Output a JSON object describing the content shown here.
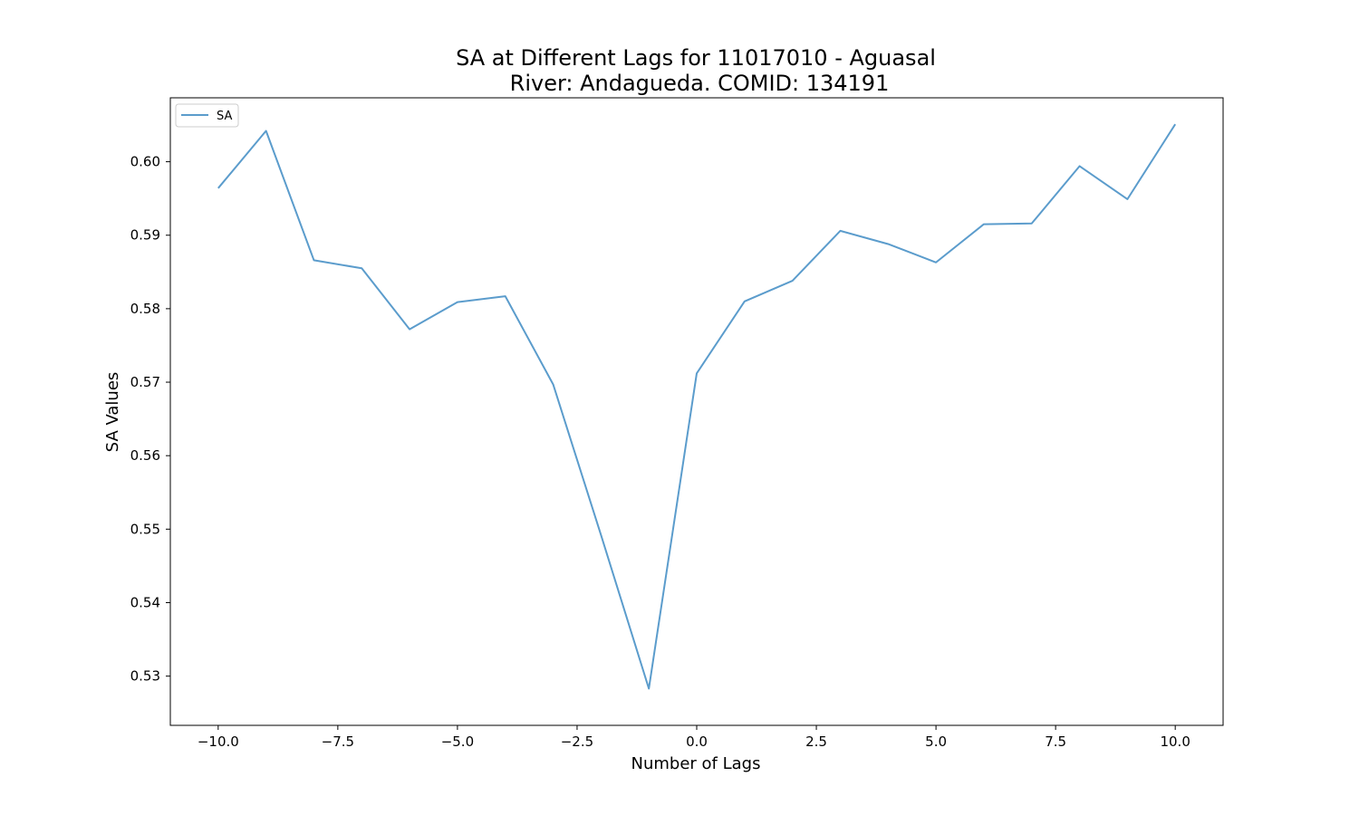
{
  "chart_data": {
    "type": "line",
    "title_line1": "SA at Different Lags for 11017010 - Aguasal",
    "title_line2": "River: Andagueda. COMID: 134191",
    "xlabel": "Number of Lags",
    "ylabel": "SA Values",
    "xlim": [
      -11,
      11
    ],
    "ylim": [
      0.5233,
      0.6087
    ],
    "xticks": [
      -10.0,
      -7.5,
      -5.0,
      -2.5,
      0.0,
      2.5,
      5.0,
      7.5,
      10.0
    ],
    "xtick_labels": [
      "−10.0",
      "−7.5",
      "−5.0",
      "−2.5",
      "0.0",
      "2.5",
      "5.0",
      "7.5",
      "10.0"
    ],
    "yticks": [
      0.53,
      0.54,
      0.55,
      0.56,
      0.57,
      0.58,
      0.59,
      0.6
    ],
    "ytick_labels": [
      "0.53",
      "0.54",
      "0.55",
      "0.56",
      "0.57",
      "0.58",
      "0.59",
      "0.60"
    ],
    "grid": false,
    "legend_position": "top-left",
    "series": [
      {
        "name": "SA",
        "color": "#5b9ccc",
        "x": [
          -10,
          -9,
          -8,
          -7,
          -6,
          -5,
          -4,
          -3,
          -2,
          -1,
          0,
          1,
          2,
          3,
          4,
          5,
          6,
          7,
          8,
          9,
          10
        ],
        "y": [
          0.5964,
          0.6042,
          0.5866,
          0.5855,
          0.5772,
          0.5809,
          0.5817,
          0.5697,
          0.5492,
          0.5283,
          0.5712,
          0.581,
          0.5838,
          0.5906,
          0.5888,
          0.5863,
          0.5915,
          0.5916,
          0.5994,
          0.5949,
          0.6051
        ]
      }
    ]
  }
}
